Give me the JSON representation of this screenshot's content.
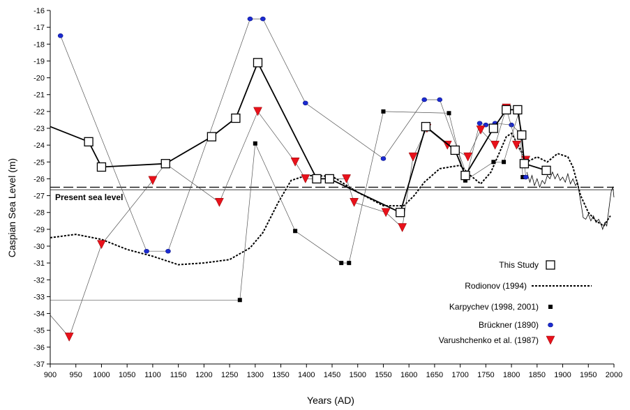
{
  "chart_data": {
    "type": "line",
    "xlabel": "Years (AD)",
    "ylabel": "Caspian Sea Level (m)",
    "xlim": [
      900,
      2000
    ],
    "ylim": [
      -37,
      -16
    ],
    "x_ticks": [
      900,
      950,
      1000,
      1050,
      1100,
      1150,
      1200,
      1250,
      1300,
      1350,
      1400,
      1450,
      1500,
      1550,
      1600,
      1650,
      1700,
      1750,
      1800,
      1850,
      1900,
      1950,
      2000
    ],
    "y_ticks": [
      -16,
      -17,
      -18,
      -19,
      -20,
      -21,
      -22,
      -23,
      -24,
      -25,
      -26,
      -27,
      -28,
      -29,
      -30,
      -31,
      -32,
      -33,
      -34,
      -35,
      -36,
      -37
    ],
    "present_sea_level": {
      "label": "Present sea level",
      "value": -26.5,
      "value_solid": -26.65
    },
    "legend_position": "bottom-right",
    "series": [
      {
        "name": "This Study",
        "marker": "open-square",
        "style": "solid-thick",
        "points": [
          [
            900,
            -22.9
          ],
          [
            975,
            -23.8
          ],
          [
            1000,
            -25.3
          ],
          [
            1125,
            -25.1
          ],
          [
            1215,
            -23.5
          ],
          [
            1262,
            -22.4
          ],
          [
            1305,
            -19.1
          ],
          [
            1420,
            -26.0
          ],
          [
            1445,
            -26.0
          ],
          [
            1583,
            -28.0
          ],
          [
            1633,
            -22.9
          ],
          [
            1690,
            -24.3
          ],
          [
            1710,
            -25.8
          ],
          [
            1765,
            -23.0
          ],
          [
            1790,
            -21.9
          ],
          [
            1812,
            -21.9
          ],
          [
            1820,
            -23.4
          ],
          [
            1825,
            -25.1
          ],
          [
            1868,
            -25.5
          ]
        ]
      },
      {
        "name": "Rodionov (1994)",
        "marker": "none",
        "style": "dotted",
        "points": [
          [
            900,
            -29.5
          ],
          [
            950,
            -29.3
          ],
          [
            1000,
            -29.6
          ],
          [
            1050,
            -30.2
          ],
          [
            1100,
            -30.6
          ],
          [
            1150,
            -31.1
          ],
          [
            1200,
            -31.0
          ],
          [
            1250,
            -30.8
          ],
          [
            1290,
            -30.1
          ],
          [
            1315,
            -29.2
          ],
          [
            1345,
            -27.4
          ],
          [
            1370,
            -26.1
          ],
          [
            1400,
            -25.8
          ],
          [
            1450,
            -25.85
          ],
          [
            1500,
            -26.8
          ],
          [
            1550,
            -27.6
          ],
          [
            1590,
            -27.6
          ],
          [
            1610,
            -27.0
          ],
          [
            1630,
            -26.2
          ],
          [
            1660,
            -25.4
          ],
          [
            1700,
            -25.2
          ],
          [
            1720,
            -25.8
          ],
          [
            1740,
            -26.3
          ],
          [
            1760,
            -25.6
          ],
          [
            1790,
            -23.5
          ],
          [
            1800,
            -23.3
          ],
          [
            1815,
            -24.1
          ],
          [
            1830,
            -25.0
          ],
          [
            1850,
            -24.7
          ],
          [
            1870,
            -25.0
          ],
          [
            1890,
            -24.5
          ],
          [
            1910,
            -24.7
          ],
          [
            1920,
            -25.3
          ],
          [
            1935,
            -27.0
          ],
          [
            1950,
            -28.0
          ],
          [
            1965,
            -28.5
          ],
          [
            1980,
            -28.8
          ],
          [
            1993,
            -28.2
          ]
        ]
      },
      {
        "name": "Karpychev (1998, 2001)",
        "marker": "filled-square",
        "style": "solid-thin",
        "points": [
          [
            900,
            -33.2
          ],
          [
            1270,
            -33.2
          ],
          [
            1300,
            -23.9
          ],
          [
            1378,
            -29.1
          ],
          [
            1468,
            -31.0
          ],
          [
            1483,
            -31.0
          ],
          [
            1550,
            -22.0
          ],
          [
            1678,
            -22.1
          ],
          [
            1710,
            -26.1
          ],
          [
            1765,
            -25.0
          ],
          [
            1785,
            -25.0
          ],
          [
            1815,
            -22.0
          ],
          [
            1822,
            -25.9
          ]
        ]
      },
      {
        "name": "Brückner  (1890)",
        "marker": "filled-circle",
        "style": "solid-thin",
        "points": [
          [
            920,
            -17.5
          ],
          [
            1088,
            -30.3
          ],
          [
            1130,
            -30.3
          ],
          [
            1290,
            -16.5
          ],
          [
            1315,
            -16.5
          ],
          [
            1398,
            -21.5
          ],
          [
            1550,
            -24.8
          ],
          [
            1630,
            -21.3
          ],
          [
            1660,
            -21.3
          ],
          [
            1713,
            -25.8
          ],
          [
            1738,
            -22.7
          ],
          [
            1750,
            -22.8
          ],
          [
            1768,
            -22.7
          ],
          [
            1800,
            -22.8
          ],
          [
            1818,
            -23.3
          ],
          [
            1828,
            -25.9
          ]
        ]
      },
      {
        "name": "Varushchenko et al. (1987)",
        "marker": "filled-triangle-down",
        "style": "solid-thin",
        "points": [
          [
            900,
            -34.1
          ],
          [
            937,
            -35.4
          ],
          [
            1000,
            -29.9
          ],
          [
            1100,
            -26.1
          ],
          [
            1125,
            -25.1
          ],
          [
            1230,
            -27.4
          ],
          [
            1305,
            -22.0
          ],
          [
            1378,
            -25.0
          ],
          [
            1398,
            -26.0
          ],
          [
            1478,
            -26.0
          ],
          [
            1493,
            -27.4
          ],
          [
            1555,
            -28.0
          ],
          [
            1587,
            -28.9
          ],
          [
            1608,
            -24.7
          ],
          [
            1635,
            -23.0
          ],
          [
            1675,
            -24.0
          ],
          [
            1715,
            -24.7
          ],
          [
            1740,
            -23.1
          ],
          [
            1768,
            -24.0
          ],
          [
            1790,
            -21.8
          ],
          [
            1810,
            -24.0
          ],
          [
            1828,
            -24.9
          ]
        ]
      },
      {
        "name": "",
        "marker": "none",
        "style": "solid-thin-instrumental",
        "points": [
          [
            1830,
            -25.6
          ],
          [
            1836,
            -26.2
          ],
          [
            1840,
            -25.8
          ],
          [
            1845,
            -26.4
          ],
          [
            1850,
            -26.0
          ],
          [
            1855,
            -26.5
          ],
          [
            1860,
            -26.1
          ],
          [
            1865,
            -26.3
          ],
          [
            1870,
            -25.8
          ],
          [
            1875,
            -26.0
          ],
          [
            1880,
            -25.6
          ],
          [
            1885,
            -26.0
          ],
          [
            1890,
            -25.7
          ],
          [
            1895,
            -26.1
          ],
          [
            1900,
            -25.9
          ],
          [
            1905,
            -26.2
          ],
          [
            1910,
            -25.7
          ],
          [
            1915,
            -26.3
          ],
          [
            1920,
            -26.0
          ],
          [
            1925,
            -26.4
          ],
          [
            1929,
            -26.2
          ],
          [
            1933,
            -27.0
          ],
          [
            1937,
            -27.7
          ],
          [
            1940,
            -28.3
          ],
          [
            1945,
            -28.4
          ],
          [
            1950,
            -28.1
          ],
          [
            1955,
            -28.5
          ],
          [
            1960,
            -28.2
          ],
          [
            1965,
            -28.6
          ],
          [
            1970,
            -28.4
          ],
          [
            1975,
            -28.7
          ],
          [
            1978,
            -29.0
          ],
          [
            1982,
            -28.6
          ],
          [
            1986,
            -28.8
          ],
          [
            1990,
            -27.8
          ],
          [
            1993,
            -27.1
          ],
          [
            1995,
            -26.7
          ],
          [
            1998,
            -26.5
          ],
          [
            2000,
            -27.1
          ]
        ]
      }
    ]
  }
}
